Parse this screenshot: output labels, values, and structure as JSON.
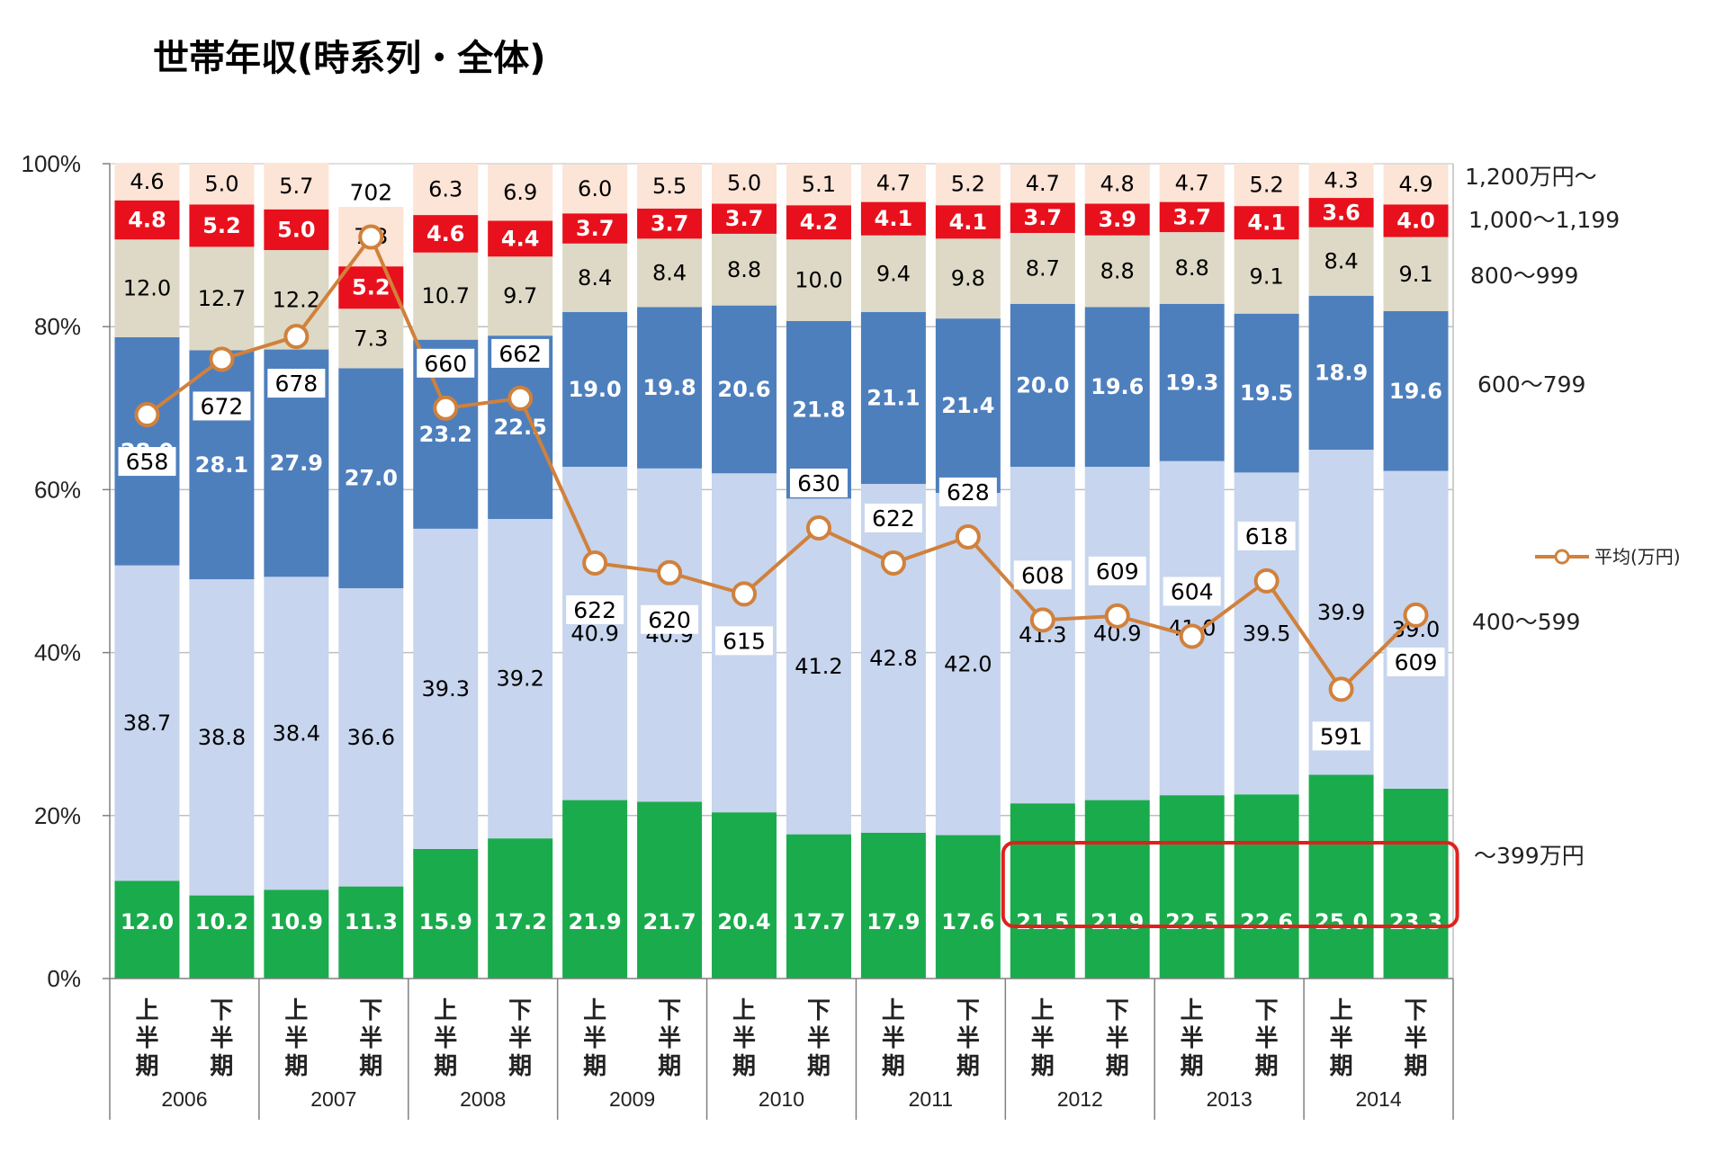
{
  "title": "世帯年収(時系列・全体)",
  "chart_data": {
    "type": "bar",
    "stacked": true,
    "percent": true,
    "yticks": [
      "0%",
      "20%",
      "40%",
      "60%",
      "80%",
      "100%"
    ],
    "ylim": [
      0,
      100
    ],
    "years": [
      "2006",
      "2007",
      "2008",
      "2009",
      "2010",
      "2011",
      "2012",
      "2013",
      "2014"
    ],
    "categories": [
      "上半期",
      "下半期",
      "上半期",
      "下半期",
      "上半期",
      "下半期",
      "上半期",
      "下半期",
      "上半期",
      "下半期",
      "上半期",
      "下半期",
      "上半期",
      "下半期",
      "上半期",
      "下半期",
      "上半期",
      "下半期"
    ],
    "series": [
      {
        "name": "～399万円",
        "color": "#1aab4c",
        "label_color": "#ffffff",
        "bold": true,
        "values": [
          12.0,
          10.2,
          10.9,
          11.3,
          15.9,
          17.2,
          21.9,
          21.7,
          20.4,
          17.7,
          17.9,
          17.6,
          21.5,
          21.9,
          22.5,
          22.6,
          25.0,
          23.3
        ]
      },
      {
        "name": "400～599",
        "color": "#c7d5ee",
        "label_color": "#000000",
        "bold": false,
        "values": [
          38.7,
          38.8,
          38.4,
          36.6,
          39.3,
          39.2,
          40.9,
          40.9,
          41.6,
          41.2,
          42.8,
          42.0,
          41.3,
          40.9,
          41.0,
          39.5,
          39.9,
          39.0
        ]
      },
      {
        "name": "600～799",
        "color": "#4e7fbd",
        "label_color": "#ffffff",
        "bold": true,
        "values": [
          28.0,
          28.1,
          27.9,
          27.0,
          23.2,
          22.5,
          19.0,
          19.8,
          20.6,
          21.8,
          21.1,
          21.4,
          20.0,
          19.6,
          19.3,
          19.5,
          18.9,
          19.6
        ]
      },
      {
        "name": "800～999",
        "color": "#ddd9c6",
        "label_color": "#000000",
        "bold": false,
        "values": [
          12.0,
          12.7,
          12.2,
          7.3,
          10.7,
          9.7,
          8.4,
          8.4,
          8.8,
          10.0,
          9.4,
          9.8,
          8.7,
          8.8,
          8.8,
          9.1,
          8.4,
          9.1
        ]
      },
      {
        "name": "1,000～1,199",
        "color": "#e8101c",
        "label_color": "#ffffff",
        "bold": true,
        "values": [
          4.8,
          5.2,
          5.0,
          5.2,
          4.6,
          4.4,
          3.7,
          3.7,
          3.7,
          4.2,
          4.1,
          4.1,
          3.7,
          3.9,
          3.7,
          4.1,
          3.6,
          4.0
        ]
      },
      {
        "name": "1,200万円～",
        "color": "#fce4d6",
        "label_color": "#000000",
        "bold": false,
        "values": [
          4.6,
          5.0,
          5.7,
          7.3,
          6.3,
          6.9,
          6.0,
          5.5,
          5.0,
          5.1,
          4.7,
          5.2,
          4.7,
          4.8,
          4.7,
          5.2,
          4.3,
          4.9
        ]
      }
    ],
    "average": {
      "name": "平均(万円)",
      "color": "#d0813c",
      "values": [
        658,
        672,
        678,
        702,
        660,
        662,
        622,
        620,
        615,
        630,
        622,
        628,
        608,
        609,
        604,
        618,
        591,
        609
      ],
      "plot_percent": [
        69.2,
        76.0,
        78.8,
        91.0,
        70.0,
        71.2,
        51.0,
        49.8,
        47.2,
        55.3,
        51.0,
        54.2,
        44.0,
        44.5,
        42.0,
        48.8,
        35.5,
        44.6
      ]
    },
    "highlight_range": [
      12,
      17
    ],
    "legend_position": "right"
  }
}
